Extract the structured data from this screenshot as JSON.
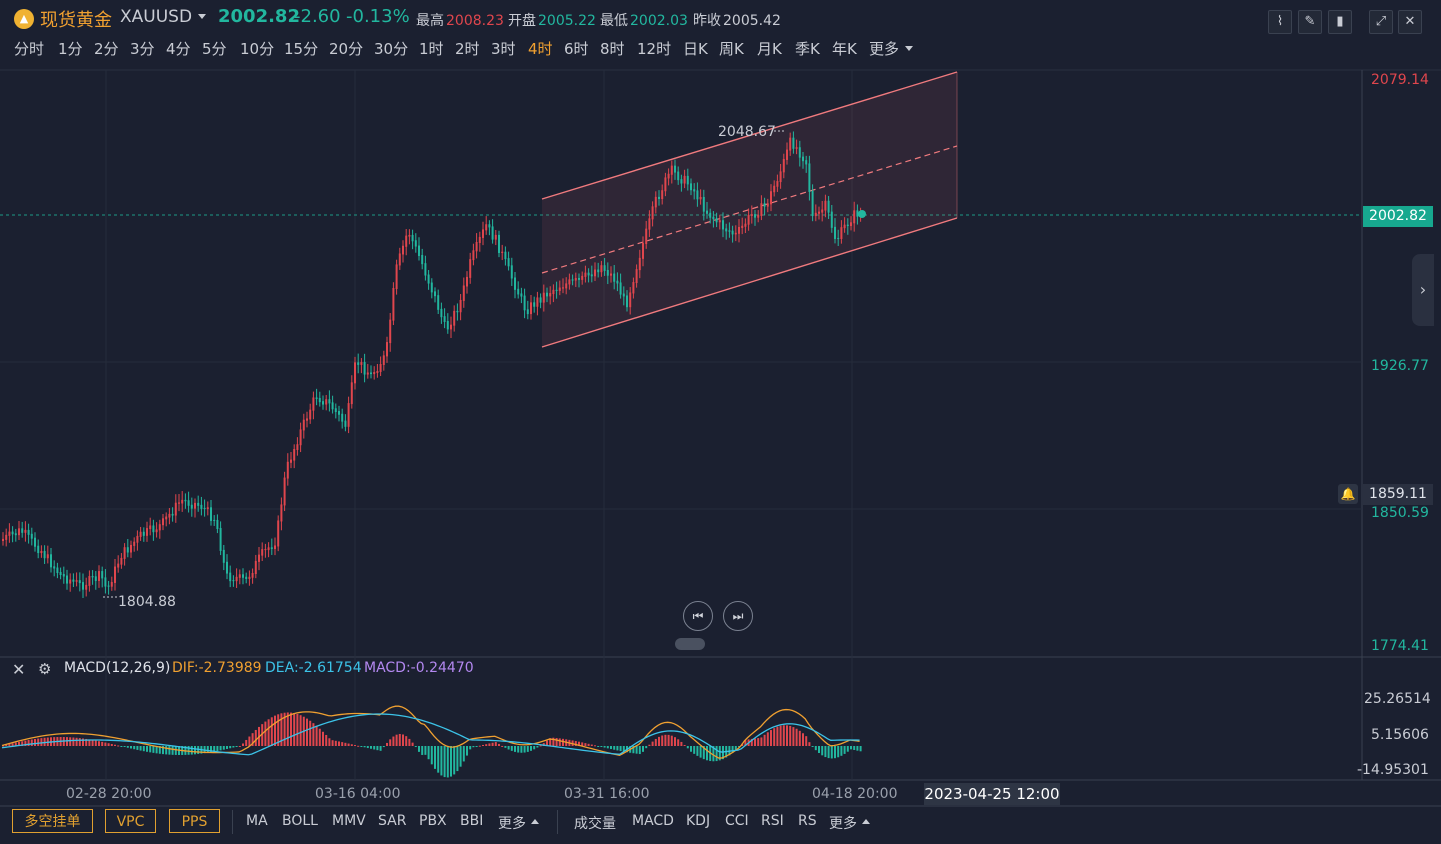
{
  "header": {
    "logo_glyph": "▲",
    "name_cn": "现货黄金",
    "symbol": "XAUUSD",
    "price": "2002.82",
    "change": "-2.60",
    "change_pct": "-0.13%",
    "high_label": "最高",
    "high_value": "2008.23",
    "open_label": "开盘",
    "open_value": "2005.22",
    "low_label": "最低",
    "low_value": "2002.03",
    "prevclose_label": "昨收",
    "prevclose_value": "2005.42",
    "tools": [
      "line-tool-icon",
      "pen-tool-icon",
      "candle-type-icon",
      "fullscreen-icon",
      "close-icon"
    ]
  },
  "periods": [
    "分时",
    "1分",
    "2分",
    "3分",
    "4分",
    "5分",
    "10分",
    "15分",
    "20分",
    "30分",
    "1时",
    "2时",
    "3时",
    "4时",
    "6时",
    "8时",
    "12时",
    "日K",
    "周K",
    "月K",
    "季K",
    "年K",
    "更多"
  ],
  "active_period": "4时",
  "price_axis": {
    "top": "2079.14",
    "mid": "1926.77",
    "low1": "1859.11",
    "low2": "1850.59",
    "bottom": "1774.41",
    "current": "2002.82"
  },
  "annotations": {
    "high": "2048.67",
    "low": "1804.88"
  },
  "macd": {
    "name": "MACD(12,26,9)",
    "dif": "DIF:-2.73989",
    "dea": "DEA:-2.61754",
    "macd": "MACD:-0.24470",
    "axis": [
      "25.26514",
      "5.15606",
      "-14.95301"
    ]
  },
  "time_axis": [
    "02-28 20:00",
    "03-16 04:00",
    "03-31 16:00",
    "04-18 20:00"
  ],
  "cursor_time": "2023-04-25 12:00",
  "bottom": {
    "order_buttons": [
      "多空挂单",
      "VPC",
      "PPS"
    ],
    "main_indicators": [
      "MA",
      "BOLL",
      "MMV",
      "SAR",
      "PBX",
      "BBI",
      "更多"
    ],
    "sub_indicators": [
      "成交量",
      "MACD",
      "KDJ",
      "CCI",
      "RSI",
      "RS",
      "更多"
    ]
  },
  "colors": {
    "up": "#e0464d",
    "down": "#22b79f",
    "accent": "#f0a030",
    "bg": "#1b2030"
  }
}
